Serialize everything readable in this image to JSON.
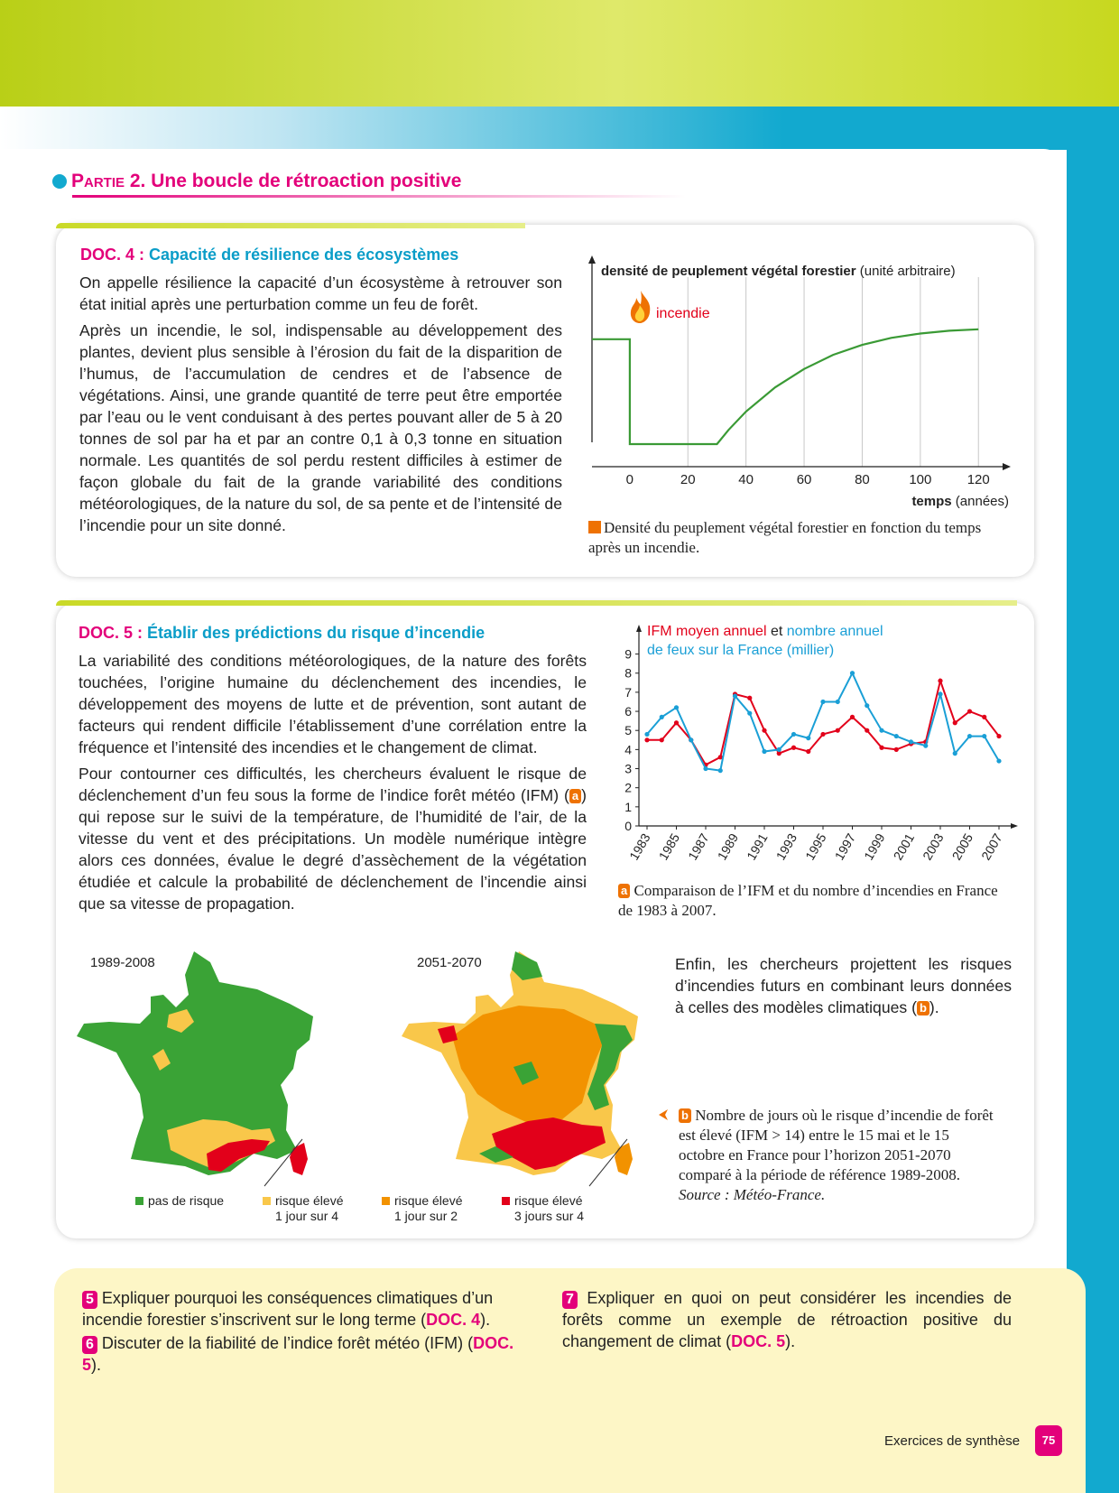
{
  "header": {
    "partie_prefix": "Partie 2.",
    "partie_title": "Une boucle de rétroaction positive"
  },
  "doc4": {
    "num": "DOC. 4 :",
    "title": "Capacité de résilience des écosystèmes",
    "p1": "On appelle résilience la capacité d’un écosystème à retrouver son état initial après une perturbation comme un feu de forêt.",
    "p2": "Après un incendie, le sol, indispensable au développement des plantes, devient plus sensible à l’érosion du fait de la disparition de l’humus, de l’accumulation de cendres et de l’absence de végétations. Ainsi, une grande quantité de terre peut être emportée par l’eau ou le vent conduisant à des pertes pouvant aller de 5 à 20 tonnes de sol par ha et par an contre 0,1 à 0,3 tonne en situation normale. Les quantités de sol perdu restent difficiles à estimer de façon globale du fait de la grande variabilité des conditions météorologiques, de la nature du sol, de sa pente et de l’intensité de l’incendie pour un site donné.",
    "caption": "Densité du peuplement végétal forestier en fonction du temps après un incendie."
  },
  "chart_data": [
    {
      "type": "line",
      "ylabel_bold": "densité de peuplement végétal forestier",
      "ylabel_unit": "(unité arbitraire)",
      "xlabel_bold": "temps",
      "xlabel_unit": "(années)",
      "annotation": "incendie",
      "x_ticks": [
        "0",
        "20",
        "40",
        "60",
        "80",
        "100",
        "120"
      ],
      "xlim": [
        -13,
        128
      ],
      "series": [
        {
          "x": [
            -13,
            0,
            0,
            30,
            34,
            40,
            50,
            60,
            70,
            80,
            90,
            100,
            110,
            120
          ],
          "y": [
            0.74,
            0.74,
            0,
            0,
            0.1,
            0.23,
            0.4,
            0.53,
            0.63,
            0.7,
            0.75,
            0.78,
            0.8,
            0.81
          ]
        }
      ],
      "ylim": [
        0,
        1
      ],
      "grid": true,
      "color": "#3a9a35"
    },
    {
      "type": "line",
      "title_red": "IFM moyen annuel",
      "title_mid": "et",
      "title_blue_1": "nombre annuel",
      "title_blue_2": "de feux sur la France (millier)",
      "y_ticks": [
        "0",
        "1",
        "2",
        "3",
        "4",
        "5",
        "6",
        "7",
        "8",
        "9"
      ],
      "ylim": [
        0,
        9
      ],
      "x_ticks": [
        "1983",
        "1985",
        "1987",
        "1989",
        "1991",
        "1993",
        "1995",
        "1997",
        "1999",
        "2001",
        "2003",
        "2005",
        "2007"
      ],
      "x": [
        1983,
        1984,
        1985,
        1986,
        1987,
        1988,
        1989,
        1990,
        1991,
        1992,
        1993,
        1994,
        1995,
        1996,
        1997,
        1998,
        1999,
        2000,
        2001,
        2002,
        2003,
        2004,
        2005,
        2006,
        2007
      ],
      "series": [
        {
          "color": "#e2001a",
          "values": [
            4.5,
            4.5,
            5.4,
            4.5,
            3.2,
            3.6,
            6.9,
            6.7,
            5.0,
            3.8,
            4.1,
            3.9,
            4.8,
            5.0,
            5.7,
            5.0,
            4.1,
            4.0,
            4.3,
            4.4,
            7.6,
            5.4,
            6.0,
            5.7,
            4.7
          ]
        },
        {
          "color": "#1a9fd6",
          "values": [
            4.8,
            5.7,
            6.2,
            4.5,
            3.0,
            2.9,
            6.8,
            5.9,
            3.9,
            4.0,
            4.8,
            4.6,
            6.5,
            6.5,
            8.0,
            6.3,
            5.0,
            4.7,
            4.4,
            4.2,
            6.9,
            3.8,
            4.7,
            4.7,
            3.4
          ]
        }
      ]
    }
  ],
  "doc5": {
    "num": "DOC. 5 :",
    "title": "Établir des prédictions du risque d’incendie",
    "p1": "La variabilité des conditions météorologiques, de la nature des forêts touchées, l’origine humaine du déclenchement des incendies, le développement des moyens de lutte et de prévention, sont autant de facteurs qui rendent difficile l’établissement d’une corrélation entre la fréquence et l’intensité des incendies et le changement de climat.",
    "p2_before": "Pour contourner ces difficultés, les chercheurs évaluent le risque de déclenchement d’un feu sous la forme de l’indice forêt météo (IFM) (",
    "p2_tag": "a",
    "p2_after": ") qui repose sur le suivi de la température, de l’humidité de l’air, de la vitesse du vent et des précipitations. Un modèle numérique intègre alors ces données, évalue le degré d’assèchement de la végétation étudiée et calcule la probabilité de déclenchement de l’incendie ainsi que sa vitesse de propagation.",
    "caption_a_tag": "a",
    "caption_a": "Comparaison de l’IFM et du nombre d’incendies en France de 1983 à 2007.",
    "enfin_before": "Enfin, les chercheurs projettent les risques d’incendies futurs en combinant leurs données à celles des modèles climatiques (",
    "enfin_tag": "b",
    "enfin_after": ").",
    "caption_b_tag": "b",
    "caption_b": "Nombre de jours où le risque d’incendie de forêt est élevé (IFM > 14) entre le 15 mai et le 15 octobre en France pour l’horizon 2051-2070 comparé à la période de référence 1989-2008.",
    "caption_b_source": "Source : Météo-France.",
    "map1_label": "1989-2008",
    "map2_label": "2051-2070",
    "legend": [
      {
        "label1": "pas de risque",
        "label2": "",
        "color": "#3aa336"
      },
      {
        "label1": "risque élevé",
        "label2": "1 jour sur 4",
        "color": "#f9c74a"
      },
      {
        "label1": "risque élevé",
        "label2": "1 jour sur 2",
        "color": "#f29200"
      },
      {
        "label1": "risque élevé",
        "label2": "3 jours sur 4",
        "color": "#e2001a"
      }
    ]
  },
  "questions": {
    "q5_num": "5",
    "q5_text": "Expliquer pourquoi les conséquences climatiques d’un incendie forestier s’inscrivent sur le long terme (",
    "q5_ref": "DOC. 4",
    "q5_end": ").",
    "q6_num": "6",
    "q6_text": "Discuter de la fiabilité de l’indice forêt météo (IFM) (",
    "q6_ref": "DOC. 5",
    "q6_end": ").",
    "q7_num": "7",
    "q7_text": "Expliquer en quoi on peut considérer les incendies de forêts comme un exemple de rétroaction positive du changement de climat (",
    "q7_ref": "DOC. 5",
    "q7_end": ")."
  },
  "footer": {
    "label": "Exercices de synthèse",
    "page": "75"
  }
}
